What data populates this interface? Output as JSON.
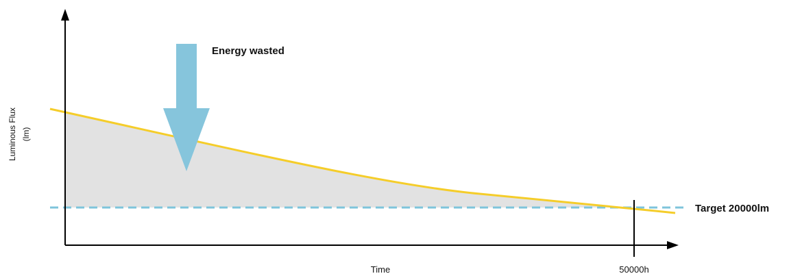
{
  "chart_data": {
    "type": "line",
    "xlabel": "Time",
    "ylabel_line1": "Luminous Flux",
    "ylabel_line2": "(lm)",
    "x_tick_label": "50000h",
    "target_label": "Target 20000lm",
    "annotation": "Energy wasted",
    "colors": {
      "curve": "#f5cd2a",
      "target": "#7ec4db",
      "fill": "#e2e2e2",
      "arrow": "#86c5dc",
      "axis": "#000000"
    }
  }
}
